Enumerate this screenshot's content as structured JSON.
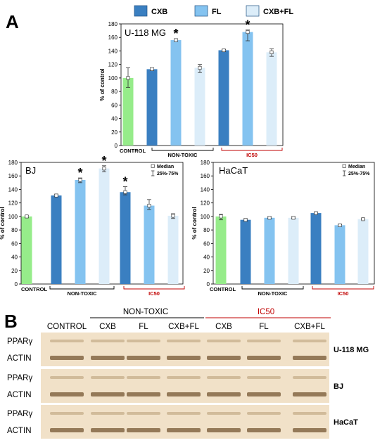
{
  "panel_a": {
    "label": "A",
    "legend": [
      {
        "name": "CXB",
        "color": "#3a7fc1"
      },
      {
        "name": "FL",
        "color": "#84c3f0"
      },
      {
        "name": "CXB+FL",
        "color": "#dcedf9"
      }
    ],
    "control_label": "CONTROL",
    "group_labels": [
      "NON-TOXIC",
      "IC50"
    ],
    "stat_legend": {
      "median": "Median",
      "range": "25%-75%"
    }
  },
  "chart_data": [
    {
      "type": "bar",
      "title": "U-118 MG",
      "ylabel": "% of control",
      "ylim": [
        0,
        180
      ],
      "yticks": [
        0,
        20,
        40,
        60,
        80,
        100,
        120,
        140,
        160,
        180
      ],
      "categories": [
        "CONTROL",
        "CXB (NON-TOXIC)",
        "FL (NON-TOXIC)",
        "CXB+FL (NON-TOXIC)",
        "CXB (IC50)",
        "FL (IC50)",
        "CXB+FL (IC50)"
      ],
      "values": [
        100,
        113,
        156,
        115,
        141,
        168,
        138
      ],
      "error_low": [
        86,
        111,
        154,
        108,
        139,
        155,
        132
      ],
      "error_high": [
        115,
        115,
        158,
        120,
        142,
        171,
        143
      ],
      "significant": [
        false,
        false,
        true,
        false,
        false,
        true,
        false
      ],
      "show_stat_legend": false
    },
    {
      "type": "bar",
      "title": "BJ",
      "ylabel": "% of control",
      "ylim": [
        0,
        180
      ],
      "yticks": [
        0,
        20,
        40,
        60,
        80,
        100,
        120,
        140,
        160,
        180
      ],
      "categories": [
        "CONTROL",
        "CXB (NON-TOXIC)",
        "FL (NON-TOXIC)",
        "CXB+FL (NON-TOXIC)",
        "CXB (IC50)",
        "FL (IC50)",
        "CXB+FL (IC50)"
      ],
      "values": [
        100,
        131,
        154,
        171,
        136,
        116,
        101
      ],
      "error_low": [
        98,
        129,
        150,
        166,
        132,
        110,
        97
      ],
      "error_high": [
        101,
        133,
        157,
        175,
        144,
        125,
        104
      ],
      "significant": [
        false,
        false,
        true,
        true,
        true,
        false,
        false
      ],
      "show_stat_legend": true
    },
    {
      "type": "bar",
      "title": "HaCaT",
      "ylabel": "% of control",
      "ylim": [
        0,
        180
      ],
      "yticks": [
        0,
        20,
        40,
        60,
        80,
        100,
        120,
        140,
        160,
        180
      ],
      "categories": [
        "CONTROL",
        "CXB (NON-TOXIC)",
        "FL (NON-TOXIC)",
        "CXB+FL (NON-TOXIC)",
        "CXB (IC50)",
        "FL (IC50)",
        "CXB+FL (IC50)"
      ],
      "values": [
        100,
        95,
        98,
        98,
        105,
        87,
        96
      ],
      "error_low": [
        95,
        93,
        97,
        97,
        104,
        86,
        95
      ],
      "error_high": [
        103,
        96,
        99,
        99,
        106,
        88,
        97
      ],
      "significant": [
        false,
        false,
        false,
        false,
        false,
        false,
        false
      ],
      "show_stat_legend": true
    }
  ],
  "panel_b": {
    "label": "B",
    "group_labels": [
      "NON-TOXIC",
      "IC50"
    ],
    "columns": [
      "CONTROL",
      "CXB",
      "FL",
      "CXB+FL",
      "CXB",
      "FL",
      "CXB+FL"
    ],
    "blots": [
      {
        "cell_line": "U-118 MG",
        "rows": [
          "PPARγ",
          "ACTIN"
        ]
      },
      {
        "cell_line": "BJ",
        "rows": [
          "PPARγ",
          "ACTIN"
        ]
      },
      {
        "cell_line": "HaCaT",
        "rows": [
          "PPARγ",
          "ACTIN"
        ]
      }
    ]
  },
  "colors": {
    "control": "#96ec8a",
    "cxb": "#3a7fc1",
    "fl": "#84c3f0",
    "cxbfl": "#dcedf9",
    "ic50_red": "#c00000",
    "blot_bg": "#f1e1c8"
  }
}
